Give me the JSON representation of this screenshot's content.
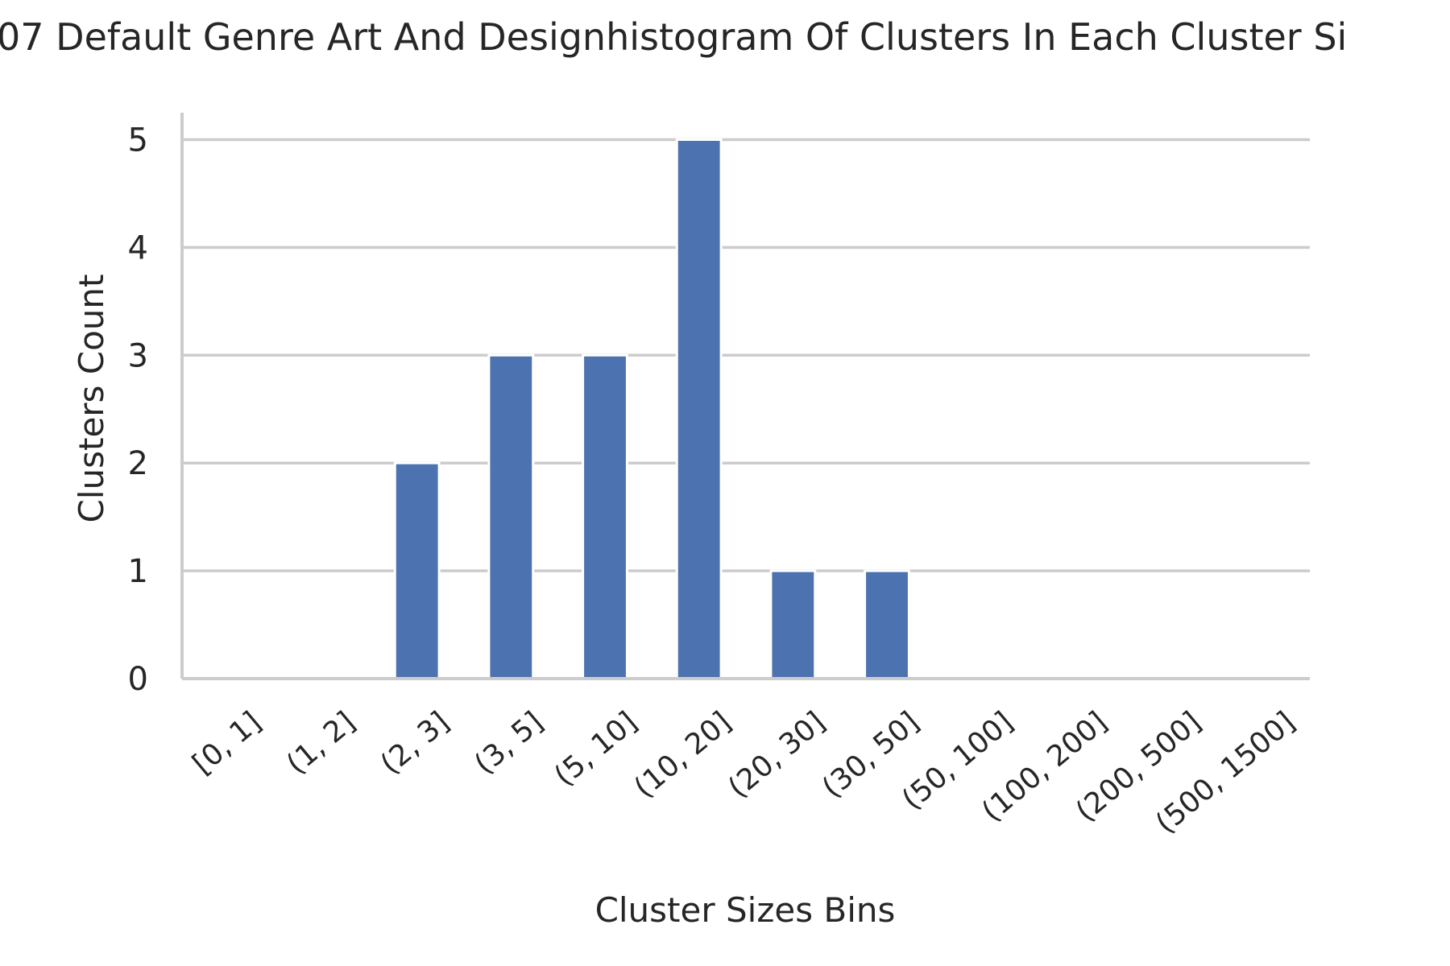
{
  "chart_data": {
    "type": "bar",
    "title": "07 Default Genre Art And Designhistogram Of Clusters In Each Cluster Si",
    "xlabel": "Cluster Sizes Bins",
    "ylabel": "Clusters Count",
    "categories": [
      "[0, 1]",
      "(1, 2]",
      "(2, 3]",
      "(3, 5]",
      "(5, 10]",
      "(10, 20]",
      "(20, 30]",
      "(30, 50]",
      "(50, 100]",
      "(100, 200]",
      "(200, 500]",
      "(500, 1500]"
    ],
    "values": [
      0,
      0,
      2,
      3,
      3,
      5,
      1,
      1,
      0,
      0,
      0,
      0
    ],
    "ylim": [
      0,
      5.25
    ],
    "yticks": [
      0,
      1,
      2,
      3,
      4,
      5
    ],
    "grid": "horizontal",
    "colors": {
      "bar": "#4c72b0",
      "grid": "#cccccc",
      "axis": "#cccccc",
      "text": "#262626"
    }
  }
}
